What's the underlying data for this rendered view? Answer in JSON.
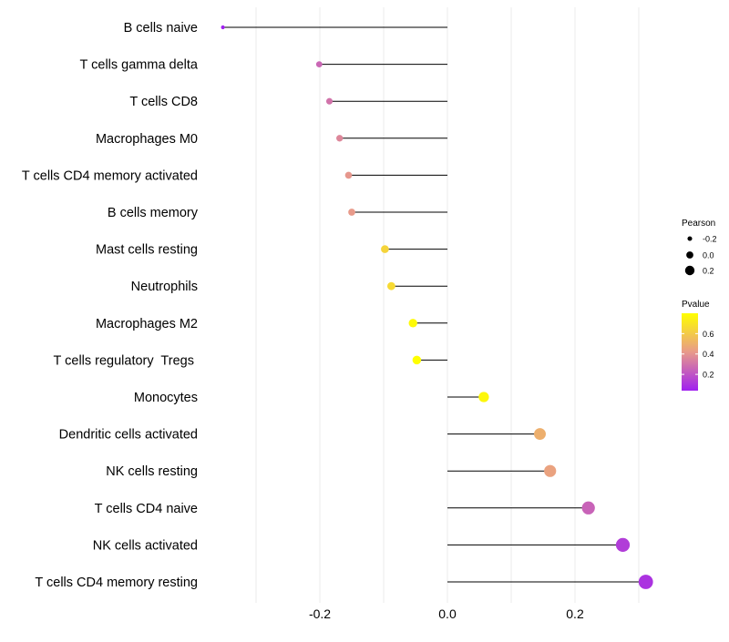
{
  "chart_data": {
    "type": "lollipop",
    "title": "",
    "xlabel": "",
    "ylabel": "",
    "xlim": [
      -0.36,
      0.32
    ],
    "x_ticks": [
      -0.2,
      0.0,
      0.2
    ],
    "x_tick_labels": [
      "-0.2",
      "0.0",
      "0.2"
    ],
    "x_minor_ticks": [
      -0.3,
      -0.1,
      0.1,
      0.3
    ],
    "grid": true,
    "baseline": 0,
    "categories": [
      "B cells naive",
      "T cells gamma delta",
      "T cells CD8",
      "Macrophages M0",
      "T cells CD4 memory activated",
      "B cells memory",
      "Mast cells resting",
      "Neutrophils",
      "Macrophages M2",
      "T cells regulatory  Tregs ",
      "Monocytes",
      "Dendritic cells activated",
      "NK cells resting",
      "T cells CD4 naive",
      "NK cells activated",
      "T cells CD4 memory resting"
    ],
    "pearson": [
      -0.352,
      -0.201,
      -0.185,
      -0.169,
      -0.155,
      -0.15,
      -0.098,
      -0.088,
      -0.054,
      -0.048,
      0.057,
      0.145,
      0.161,
      0.221,
      0.275,
      0.311
    ],
    "pvalue": [
      0.04,
      0.26,
      0.3,
      0.36,
      0.41,
      0.42,
      0.64,
      0.66,
      0.78,
      0.8,
      0.77,
      0.5,
      0.45,
      0.25,
      0.13,
      0.1
    ],
    "legend": {
      "placement": "right",
      "size": {
        "title": "Pearson",
        "values": [
          -0.2,
          0.0,
          0.2
        ],
        "labels": [
          "-0.2",
          "0.0",
          "0.2"
        ]
      },
      "color": {
        "title": "Pvalue",
        "range": [
          0.04,
          0.8
        ],
        "ticks": [
          0.2,
          0.4,
          0.6
        ],
        "tick_labels": [
          "0.2",
          "0.4",
          "0.6"
        ],
        "low_color": "#a020f0",
        "mid_color": "#e89a8a",
        "high_color": "#ffff00"
      }
    },
    "colors": {
      "stem": "#000000",
      "grid": "#ebebeb",
      "text": "#000000",
      "legend_key": "#000000"
    }
  }
}
